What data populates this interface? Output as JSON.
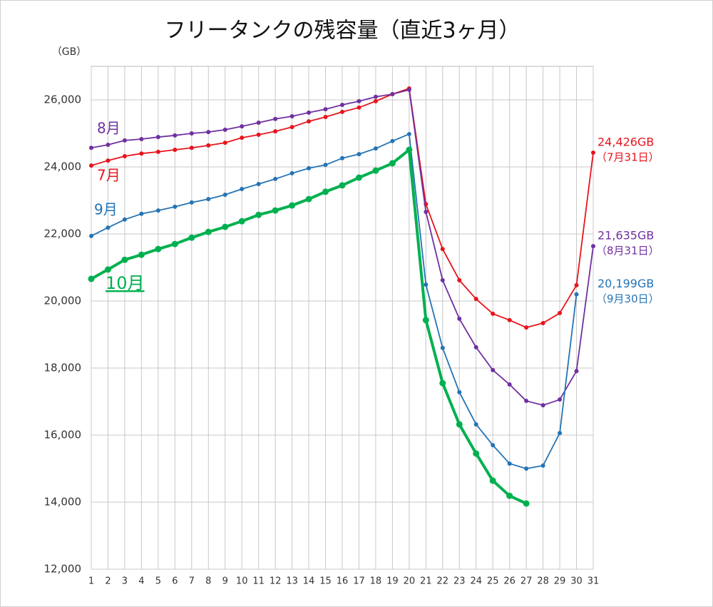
{
  "chart_data": {
    "type": "line",
    "title": "フリータンクの残容量（直近3ヶ月）",
    "y_label": "（GB）",
    "x": [
      1,
      2,
      3,
      4,
      5,
      6,
      7,
      8,
      9,
      10,
      11,
      12,
      13,
      14,
      15,
      16,
      17,
      18,
      19,
      20,
      21,
      22,
      23,
      24,
      25,
      26,
      27,
      28,
      29,
      30,
      31
    ],
    "xlim": [
      1,
      31
    ],
    "xticks": [
      1,
      2,
      3,
      4,
      5,
      6,
      7,
      8,
      9,
      10,
      11,
      12,
      13,
      14,
      15,
      16,
      17,
      18,
      19,
      20,
      21,
      22,
      23,
      24,
      25,
      26,
      27,
      28,
      29,
      30,
      31
    ],
    "ylim": [
      12000,
      27000
    ],
    "yticks": [
      {
        "value": 12000,
        "label": "12,000"
      },
      {
        "value": 14000,
        "label": "14,000"
      },
      {
        "value": 16000,
        "label": "16,000"
      },
      {
        "value": 18000,
        "label": "18,000"
      },
      {
        "value": 20000,
        "label": "20,000"
      },
      {
        "value": 22000,
        "label": "22,000"
      },
      {
        "value": 24000,
        "label": "24,000"
      },
      {
        "value": 26000,
        "label": "26,000"
      }
    ],
    "grid": true,
    "series": [
      {
        "name": "7月",
        "color": "#e8141c",
        "values": [
          24040,
          24190,
          24320,
          24400,
          24450,
          24510,
          24570,
          24640,
          24720,
          24870,
          24960,
          25060,
          25190,
          25360,
          25490,
          25640,
          25770,
          25960,
          26170,
          26340,
          22890,
          21550,
          20620,
          20060,
          19620,
          19430,
          19210,
          19340,
          19640,
          20470,
          24426
        ],
        "value_labels": [
          null,
          null,
          null,
          null,
          null,
          null,
          null,
          null,
          null,
          null,
          null,
          null,
          null,
          null,
          null,
          null,
          null,
          null,
          null,
          null,
          null,
          null,
          null,
          null,
          null,
          null,
          null,
          null,
          null,
          null,
          "24,426GB"
        ],
        "note": "（7月31日）"
      },
      {
        "name": "8月",
        "color": "#7030a0",
        "values": [
          24570,
          24660,
          24790,
          24830,
          24890,
          24940,
          25000,
          25040,
          25110,
          25210,
          25320,
          25430,
          25510,
          25620,
          25720,
          25850,
          25960,
          26090,
          26170,
          26300,
          22660,
          20620,
          19470,
          18620,
          17940,
          17510,
          17020,
          16890,
          17060,
          17910,
          21635
        ],
        "value_labels": [
          null,
          null,
          null,
          null,
          null,
          null,
          null,
          null,
          null,
          null,
          null,
          null,
          null,
          null,
          null,
          null,
          null,
          null,
          null,
          null,
          null,
          null,
          null,
          null,
          null,
          null,
          null,
          null,
          null,
          null,
          "21,635GB"
        ],
        "note": "（8月31日）"
      },
      {
        "name": "9月",
        "color": "#2474b5",
        "values": [
          21940,
          22190,
          22430,
          22600,
          22700,
          22810,
          22940,
          23040,
          23170,
          23340,
          23490,
          23640,
          23810,
          23960,
          24060,
          24260,
          24380,
          24550,
          24770,
          24980,
          20490,
          18600,
          17280,
          16320,
          15700,
          15150,
          15000,
          15090,
          16060,
          20199,
          null
        ],
        "value_labels": [
          null,
          null,
          null,
          null,
          null,
          null,
          null,
          null,
          null,
          null,
          null,
          null,
          null,
          null,
          null,
          null,
          null,
          null,
          null,
          null,
          null,
          null,
          null,
          null,
          null,
          null,
          null,
          null,
          null,
          "20,199GB",
          null
        ],
        "note": "（9月30日）"
      },
      {
        "name": "10月",
        "color": "#00b050",
        "values": [
          20660,
          20940,
          21230,
          21380,
          21550,
          21700,
          21890,
          22060,
          22210,
          22380,
          22570,
          22700,
          22850,
          23040,
          23260,
          23450,
          23680,
          23890,
          24110,
          24510,
          19430,
          17550,
          16320,
          15450,
          14640,
          14190,
          13960,
          null,
          null,
          null,
          null
        ]
      }
    ]
  }
}
